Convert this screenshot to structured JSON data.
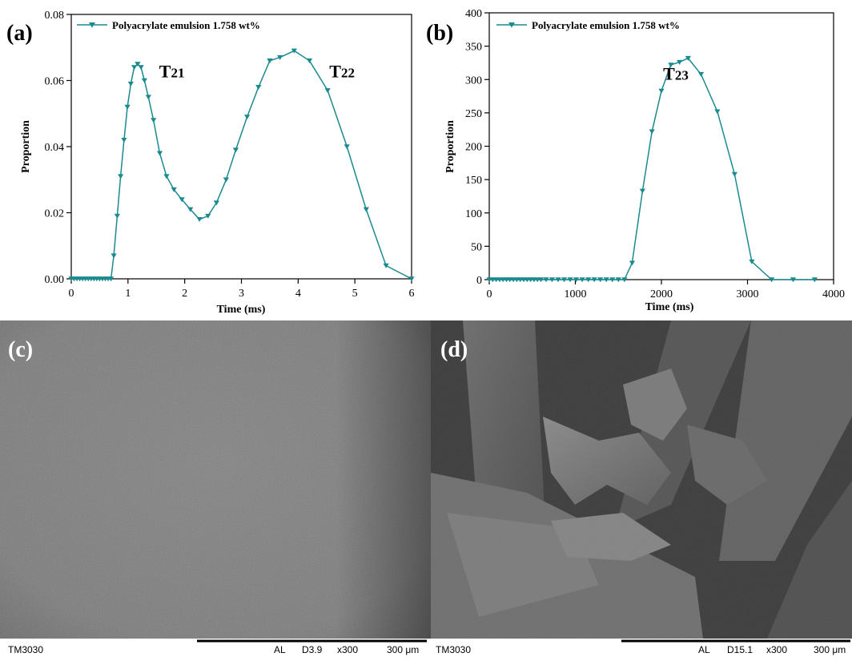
{
  "colors": {
    "series": "#1a8a8f",
    "axis": "#000000"
  },
  "chart_data": [
    {
      "panel": "(a)",
      "type": "line",
      "xlabel": "Time (ms)",
      "ylabel": "Proportion",
      "xlim": [
        0,
        6
      ],
      "ylim": [
        0,
        0.08
      ],
      "xticks": [
        0,
        1,
        2,
        3,
        4,
        5,
        6
      ],
      "yticks": [
        0.0,
        0.02,
        0.04,
        0.06,
        0.08
      ],
      "ytick_labels": [
        "0.00",
        "0.02",
        "0.04",
        "0.06",
        "0.08"
      ],
      "legend": "top-left",
      "marker": "down-triangle",
      "series": [
        {
          "name": "Polyacrylate emulsion 1.758 wt%",
          "x": [
            0,
            0.05,
            0.1,
            0.15,
            0.2,
            0.25,
            0.3,
            0.35,
            0.4,
            0.45,
            0.5,
            0.55,
            0.6,
            0.65,
            0.7,
            0.75,
            0.81,
            0.87,
            0.93,
            0.99,
            1.05,
            1.11,
            1.17,
            1.23,
            1.29,
            1.36,
            1.45,
            1.56,
            1.68,
            1.81,
            1.95,
            2.1,
            2.26,
            2.41,
            2.56,
            2.73,
            2.9,
            3.1,
            3.3,
            3.5,
            3.68,
            3.93,
            4.2,
            4.52,
            4.86,
            5.2,
            5.55,
            6.0
          ],
          "y": [
            0,
            0,
            0,
            0,
            0,
            0,
            0,
            0,
            0,
            0,
            0,
            0,
            0,
            0,
            0,
            0.007,
            0.019,
            0.031,
            0.042,
            0.052,
            0.059,
            0.064,
            0.065,
            0.064,
            0.06,
            0.055,
            0.048,
            0.038,
            0.031,
            0.027,
            0.024,
            0.021,
            0.018,
            0.019,
            0.023,
            0.03,
            0.039,
            0.049,
            0.058,
            0.066,
            0.067,
            0.069,
            0.066,
            0.057,
            0.04,
            0.021,
            0.004,
            0
          ]
        }
      ],
      "annotations": [
        {
          "text": "T",
          "sub": "21",
          "x": 1.55,
          "y": 0.061
        },
        {
          "text": "T",
          "sub": "22",
          "x": 4.55,
          "y": 0.061
        }
      ]
    },
    {
      "panel": "(b)",
      "type": "line",
      "xlabel": "Time (ms)",
      "ylabel": "Proportion",
      "xlim": [
        0,
        4000
      ],
      "ylim": [
        0,
        400
      ],
      "xticks": [
        0,
        1000,
        2000,
        3000,
        4000
      ],
      "yticks": [
        0,
        50,
        100,
        150,
        200,
        250,
        300,
        350,
        400
      ],
      "ytick_labels": [
        "0",
        "50",
        "100",
        "150",
        "200",
        "250",
        "300",
        "350",
        "400"
      ],
      "legend": "top-left",
      "marker": "down-triangle",
      "series": [
        {
          "name": "Polyacrylate emulsion 1.758 wt%",
          "x": [
            0,
            40,
            80,
            120,
            160,
            200,
            240,
            280,
            320,
            360,
            400,
            440,
            480,
            520,
            560,
            600,
            660,
            730,
            800,
            870,
            940,
            1010,
            1080,
            1150,
            1220,
            1290,
            1360,
            1430,
            1500,
            1570,
            1660,
            1780,
            1890,
            2000,
            2110,
            2210,
            2310,
            2460,
            2650,
            2850,
            3050,
            3280,
            3530,
            3780
          ],
          "y": [
            0,
            0,
            0,
            0,
            0,
            0,
            0,
            0,
            0,
            0,
            0,
            0,
            0,
            0,
            0,
            0,
            0,
            0,
            0,
            0,
            0,
            0,
            0,
            0,
            0,
            0,
            0,
            0,
            0,
            0,
            25,
            133,
            222,
            283,
            322,
            326,
            332,
            308,
            252,
            158,
            27,
            0,
            0,
            0
          ]
        }
      ],
      "annotations": [
        {
          "text": "T",
          "sub": "23",
          "x": 2020,
          "y": 300
        }
      ]
    }
  ],
  "sem": [
    {
      "panel": "(c)",
      "instrument": "TM3030",
      "mode": "AL",
      "distance": "D3.9",
      "mag": "x300",
      "scale": "300 μm"
    },
    {
      "panel": "(d)",
      "instrument": "TM3030",
      "mode": "AL",
      "distance": "D15.1",
      "mag": "x300",
      "scale": "300 μm"
    }
  ]
}
